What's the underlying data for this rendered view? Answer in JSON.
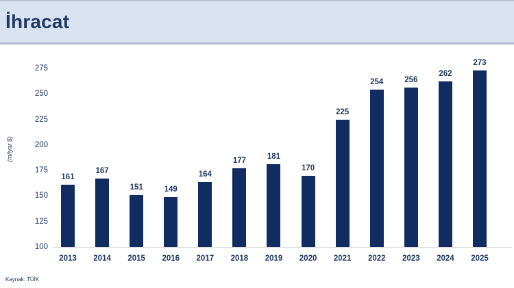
{
  "header": {
    "title": "İhracat"
  },
  "source": {
    "label": "Kaynak: TÜİK"
  },
  "colors": {
    "header_background": "#d9e2f1",
    "navy_text": "#1f3864",
    "bar_fill": "#112c61",
    "axis_line": "#d6d6d6"
  },
  "chart_data": {
    "type": "bar",
    "title": "İhracat",
    "categories": [
      "2013",
      "2014",
      "2015",
      "2016",
      "2017",
      "2018",
      "2019",
      "2020",
      "2021",
      "2022",
      "2023",
      "2024",
      "2025"
    ],
    "values": [
      161,
      167,
      151,
      149,
      164,
      177,
      181,
      170,
      225,
      254,
      256,
      262,
      273
    ],
    "xlabel": "",
    "ylabel": "(milyar $)",
    "ylim": [
      100,
      275
    ],
    "yticks": [
      100,
      125,
      150,
      175,
      200,
      225,
      250,
      275
    ],
    "grid": false,
    "legend": false,
    "bar_color": "#112c61",
    "data_labels": true
  }
}
